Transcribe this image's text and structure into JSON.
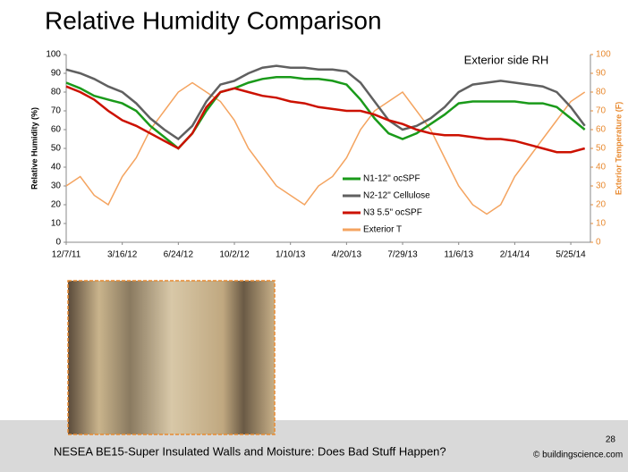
{
  "chart_data": {
    "type": "line",
    "title": "Relative Humidity Comparison",
    "annotation": "Exterior side RH",
    "y_label": "Relative Humidity (%)",
    "y2_label": "Exterior Temperature (F)",
    "x": [
      "12/7/11",
      "1/1/12",
      "1/26/12",
      "2/20/12",
      "3/16/12",
      "4/10/12",
      "5/5/12",
      "5/30/12",
      "6/24/12",
      "7/19/12",
      "8/13/12",
      "9/7/12",
      "10/2/12",
      "10/27/12",
      "11/21/12",
      "12/16/12",
      "1/10/13",
      "2/4/13",
      "3/1/13",
      "3/26/13",
      "4/20/13",
      "5/15/13",
      "6/9/13",
      "7/4/13",
      "7/29/13",
      "8/23/13",
      "9/17/13",
      "10/12/13",
      "11/6/13",
      "12/1/13",
      "12/26/13",
      "1/20/14",
      "2/14/14",
      "3/11/14",
      "4/5/14",
      "4/30/14",
      "5/25/14",
      "6/19/14"
    ],
    "xlim": [
      "12/7/11",
      "6/29/14"
    ],
    "xticks": [
      "12/7/11",
      "3/16/12",
      "6/24/12",
      "10/2/12",
      "1/10/13",
      "4/20/13",
      "7/29/13",
      "11/6/13",
      "2/14/14",
      "5/25/14"
    ],
    "ylim": [
      0,
      100
    ],
    "yticks": [
      0,
      10,
      20,
      30,
      40,
      50,
      60,
      70,
      80,
      90,
      100
    ],
    "y2lim": [
      0,
      100
    ],
    "y2ticks": [
      0,
      10,
      20,
      30,
      40,
      50,
      60,
      70,
      80,
      90,
      100
    ],
    "legend": "center",
    "series": [
      {
        "name": "Exterior T",
        "color": "#f4a460",
        "axis": "y2",
        "values": [
          30,
          35,
          25,
          20,
          35,
          45,
          60,
          70,
          80,
          85,
          80,
          75,
          65,
          50,
          40,
          30,
          25,
          20,
          30,
          35,
          45,
          60,
          70,
          75,
          80,
          70,
          60,
          45,
          30,
          20,
          15,
          20,
          35,
          45,
          55,
          65,
          75,
          80
        ]
      },
      {
        "name": "N2-12\" Cellulose",
        "color": "#606060",
        "values": [
          92,
          90,
          87,
          83,
          80,
          74,
          66,
          60,
          55,
          62,
          75,
          84,
          86,
          90,
          93,
          94,
          93,
          93,
          92,
          92,
          91,
          85,
          75,
          65,
          60,
          62,
          66,
          72,
          80,
          84,
          85,
          86,
          85,
          84,
          83,
          80,
          72,
          62
        ]
      },
      {
        "name": "N1-12\" ocSPF",
        "color": "#1a9a1a",
        "values": [
          85,
          82,
          78,
          76,
          74,
          70,
          62,
          56,
          50,
          58,
          70,
          80,
          82,
          85,
          87,
          88,
          88,
          87,
          87,
          86,
          84,
          76,
          66,
          58,
          55,
          58,
          63,
          68,
          74,
          75,
          75,
          75,
          75,
          74,
          74,
          72,
          66,
          60
        ]
      },
      {
        "name": "N3 5.5\" ocSPF",
        "color": "#cc1100",
        "values": [
          83,
          80,
          76,
          70,
          65,
          62,
          58,
          54,
          50,
          58,
          72,
          80,
          82,
          80,
          78,
          77,
          75,
          74,
          72,
          71,
          70,
          70,
          68,
          65,
          63,
          60,
          58,
          57,
          57,
          56,
          55,
          55,
          54,
          52,
          50,
          48,
          48,
          50
        ]
      }
    ]
  },
  "footer": {
    "text": "NESEA BE15-Super Insulated Walls and Moisture: Does Bad Stuff Happen?",
    "credit": "© buildingscience.com",
    "page": "28"
  }
}
